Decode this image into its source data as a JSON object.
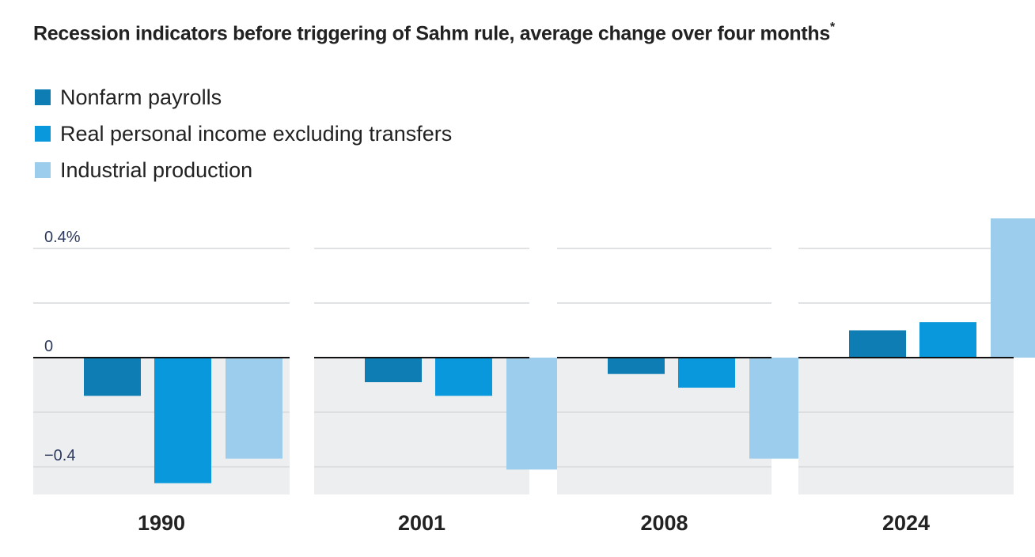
{
  "title": "Recession indicators before triggering of Sahm rule, average change over four months",
  "title_marker": "*",
  "colors": {
    "nonfarm": "#0d7db3",
    "income": "#0a98dc",
    "industrial": "#9ccdec",
    "negative_bg": "#eceef0",
    "grid": "#d6d8db",
    "zero": "#111111"
  },
  "legend": [
    {
      "label": "Nonfarm payrolls",
      "color": "#0d7db3"
    },
    {
      "label": "Real personal income excluding transfers",
      "color": "#0a98dc"
    },
    {
      "label": "Industrial production",
      "color": "#9ccdec"
    }
  ],
  "chart_data": {
    "type": "bar",
    "title": "Recession indicators before triggering of Sahm rule, average change over four months*",
    "ylim": [
      -0.5,
      0.5
    ],
    "y_ticks": [
      {
        "value": 0.4,
        "label": "0.4%"
      },
      {
        "value": 0.2,
        "label": ""
      },
      {
        "value": 0,
        "label": "0"
      },
      {
        "value": -0.2,
        "label": ""
      },
      {
        "value": -0.4,
        "label": "−0.4"
      }
    ],
    "grid": true,
    "legend_position": "top-left",
    "series": [
      {
        "name": "Nonfarm payrolls",
        "color": "#0d7db3"
      },
      {
        "name": "Real personal income excluding transfers",
        "color": "#0a98dc"
      },
      {
        "name": "Industrial production",
        "color": "#9ccdec"
      }
    ],
    "panels": [
      {
        "label": "1990",
        "values": [
          -0.14,
          -0.46,
          -0.37
        ]
      },
      {
        "label": "2001",
        "values": [
          -0.09,
          -0.14,
          -0.41
        ]
      },
      {
        "label": "2008",
        "values": [
          -0.06,
          -0.11,
          -0.37
        ]
      },
      {
        "label": "2024",
        "values": [
          0.1,
          0.13,
          0.51
        ]
      }
    ]
  }
}
